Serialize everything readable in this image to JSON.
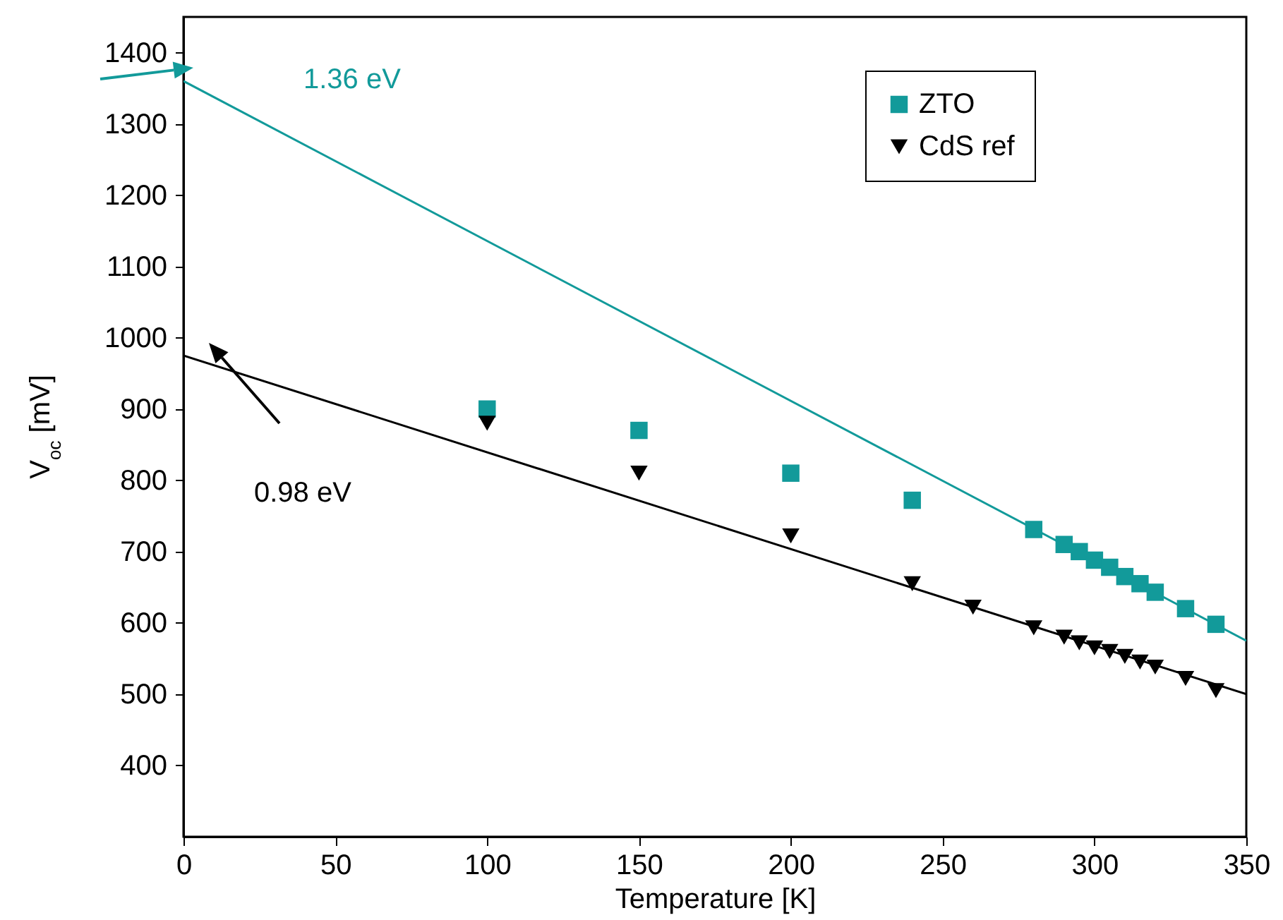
{
  "chart_data": {
    "type": "scatter",
    "xlabel": "Temperature [K]",
    "ylabel": "V$_{oc}$ [mV]",
    "xlim": [
      0,
      350
    ],
    "xticks": [
      0,
      50,
      100,
      150,
      200,
      250,
      300,
      350
    ],
    "ylim": [
      300,
      1450
    ],
    "yticks": [
      400,
      500,
      600,
      700,
      800,
      900,
      1000,
      1100,
      1200,
      1300,
      1400
    ],
    "grid": false,
    "legend": "top right",
    "series": [
      {
        "name": "ZTO",
        "color": "#129a9a",
        "marker": "square",
        "x": [
          100,
          150,
          200,
          240,
          280,
          290,
          295,
          300,
          305,
          310,
          315,
          320,
          330,
          340
        ],
        "values": [
          900,
          870,
          810,
          772,
          731,
          710,
          700,
          688,
          678,
          665,
          655,
          643,
          620,
          598
        ]
      },
      {
        "name": "CdS ref",
        "color": "#000000",
        "marker": "triangle-down",
        "x": [
          100,
          150,
          200,
          240,
          260,
          280,
          290,
          295,
          300,
          305,
          310,
          315,
          320,
          330,
          340
        ],
        "values": [
          880,
          810,
          722,
          655,
          622,
          593,
          580,
          572,
          565,
          560,
          553,
          545,
          538,
          522,
          505
        ]
      },
      {
        "type": "line",
        "color": "#129a9a",
        "x": [
          0,
          350
        ],
        "values": [
          1360,
          575
        ]
      },
      {
        "type": "line",
        "color": "#000000",
        "x": [
          0,
          350
        ],
        "values": [
          975,
          500
        ]
      }
    ],
    "annotations": [
      "1.36 eV",
      "0.98 eV"
    ]
  }
}
